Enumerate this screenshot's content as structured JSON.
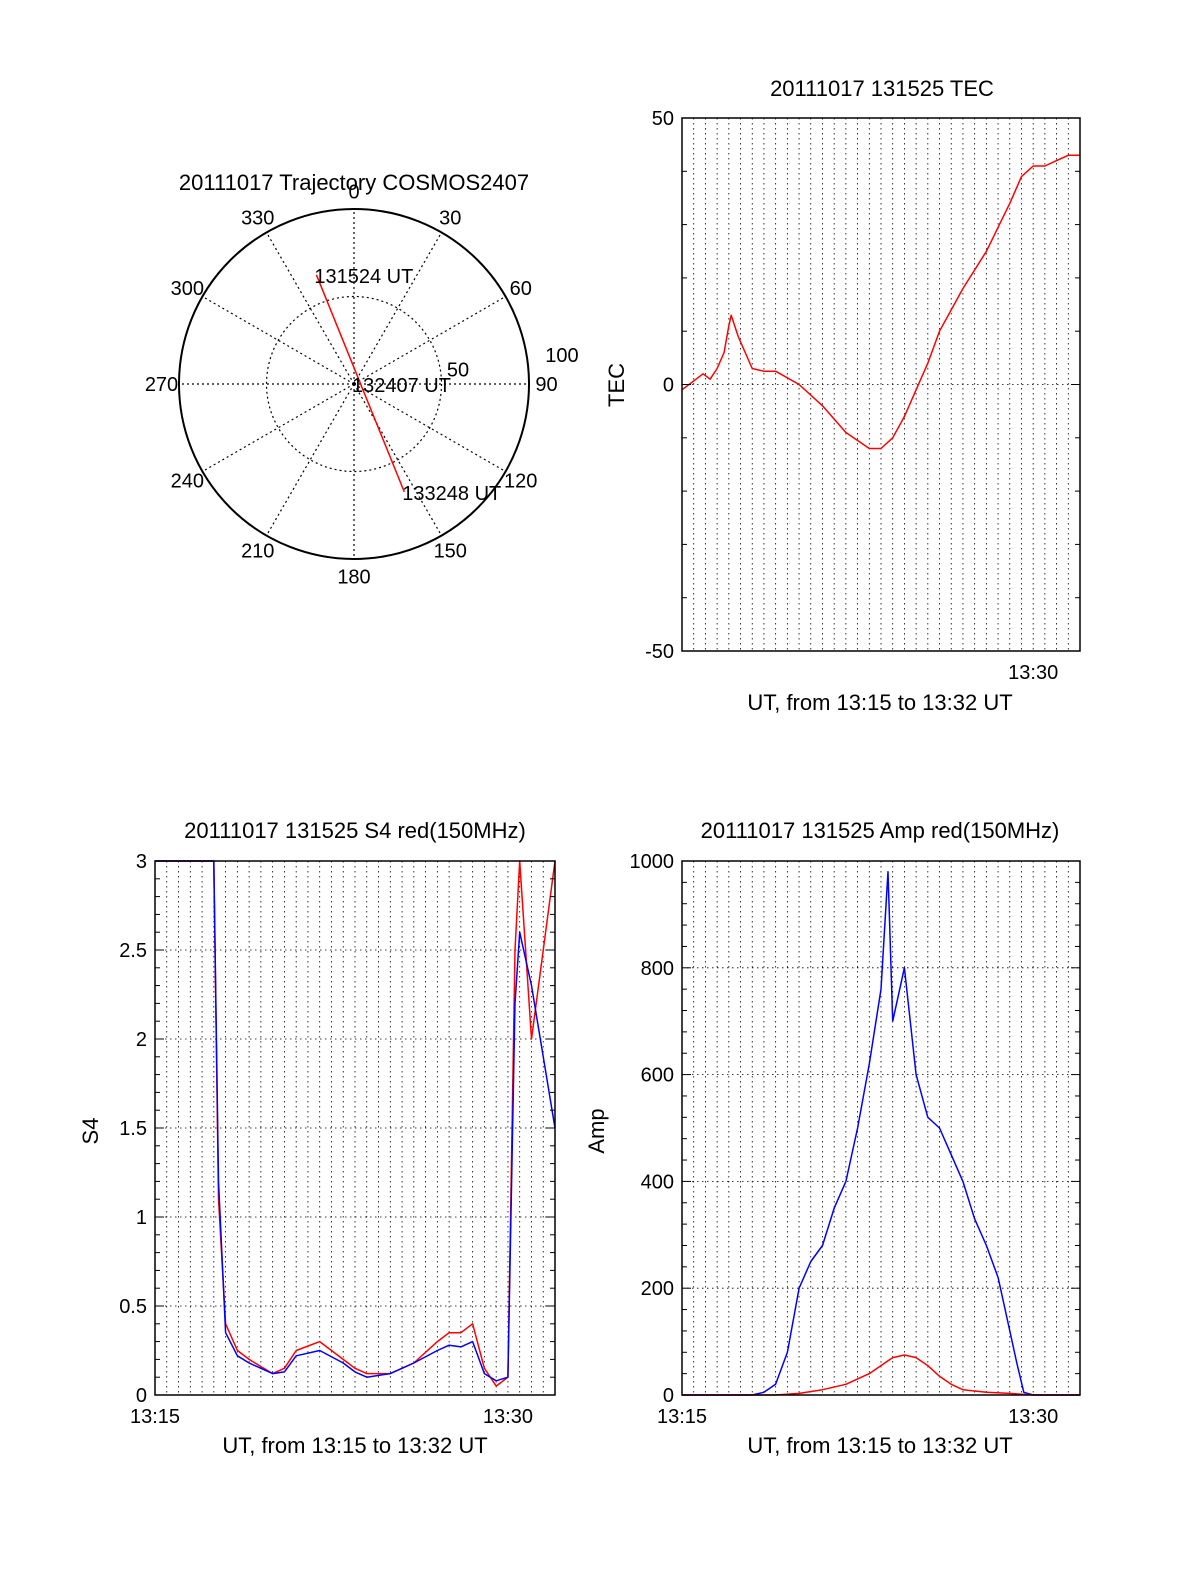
{
  "chart_data": [
    {
      "type": "polar",
      "title": "20111017 Trajectory COSMOS2407",
      "angle_labels": [
        "0",
        "30",
        "60",
        "90",
        "120",
        "150",
        "180",
        "210",
        "240",
        "270",
        "300",
        "330"
      ],
      "angles_deg": [
        0,
        30,
        60,
        90,
        120,
        150,
        180,
        210,
        240,
        270,
        300,
        330
      ],
      "radial_labels": [
        "50",
        "100"
      ],
      "radial_values": [
        50,
        100
      ],
      "rlim": [
        0,
        100
      ],
      "series": [
        {
          "color": "#ff0000",
          "azimuth_deg": [
            341,
            155
          ],
          "radius": [
            66,
            68
          ]
        }
      ],
      "annotations": [
        {
          "text": "131524 UT",
          "azimuth_deg": 341,
          "radius": 66
        },
        {
          "text": "132407 UT",
          "azimuth_deg": 0,
          "radius": 0
        },
        {
          "text": "133248 UT",
          "azimuth_deg": 155,
          "radius": 68
        }
      ]
    },
    {
      "type": "line",
      "title": "20111017 131525 TEC",
      "xlabel": "UT, from 13:15 to 13:32 UT",
      "ylabel": "TEC",
      "xlim": [
        0,
        17
      ],
      "ylim": [
        -50,
        50
      ],
      "yticks": [
        -50,
        0,
        50
      ],
      "xtick_labels": [
        {
          "value": 15,
          "label": "13:30"
        }
      ],
      "grid": true,
      "series": [
        {
          "color": "#ff0000",
          "x": [
            0,
            0.3,
            0.6,
            0.9,
            1.2,
            1.5,
            1.8,
            2.0,
            2.1,
            2.4,
            2.7,
            3.0,
            3.5,
            4.0,
            5.0,
            6.0,
            7.0,
            8.0,
            8.5,
            9.0,
            9.5,
            10.0,
            10.5,
            11.0,
            12.0,
            13.0,
            14.0,
            14.5,
            15.0,
            15.5,
            16.0,
            16.5,
            17.0
          ],
          "y": [
            -1,
            0,
            1,
            2,
            1,
            3,
            6,
            11,
            13,
            9,
            6,
            3,
            2.5,
            2.5,
            0,
            -4,
            -9,
            -12,
            -12,
            -10,
            -6,
            -1,
            4,
            10,
            18,
            25,
            34,
            39,
            41,
            41,
            42,
            43,
            43
          ]
        }
      ]
    },
    {
      "type": "line",
      "title": "20111017 131525 S4 red(150MHz)",
      "xlabel": "UT, from 13:15 to 13:32 UT",
      "ylabel": "S4",
      "xlim": [
        0,
        17
      ],
      "ylim": [
        0,
        3
      ],
      "yticks": [
        0,
        0.5,
        1,
        1.5,
        2,
        2.5,
        3
      ],
      "xtick_labels": [
        {
          "value": 0,
          "label": "13:15"
        },
        {
          "value": 15,
          "label": "13:30"
        }
      ],
      "grid": true,
      "series": [
        {
          "color": "#ff0000",
          "x": [
            0,
            2.5,
            2.7,
            3.0,
            3.5,
            4.0,
            5.0,
            5.5,
            6.0,
            7.0,
            8.0,
            8.5,
            9.0,
            10.0,
            11.0,
            12.0,
            12.5,
            13.0,
            13.5,
            14.0,
            14.5,
            15.0,
            15.3,
            15.5,
            16.0,
            17.0
          ],
          "y": [
            3,
            3,
            1.1,
            0.4,
            0.25,
            0.2,
            0.12,
            0.15,
            0.25,
            0.3,
            0.2,
            0.15,
            0.12,
            0.12,
            0.18,
            0.3,
            0.35,
            0.35,
            0.4,
            0.15,
            0.05,
            0.1,
            2.5,
            3,
            2,
            3
          ]
        },
        {
          "color": "#0000ff",
          "x": [
            0,
            2.5,
            2.7,
            3.0,
            3.5,
            4.0,
            5.0,
            5.5,
            6.0,
            7.0,
            8.0,
            8.5,
            9.0,
            10.0,
            11.0,
            12.0,
            12.5,
            13.0,
            13.5,
            14.0,
            14.5,
            15.0,
            15.3,
            15.5,
            16.0,
            17.0
          ],
          "y": [
            3,
            3,
            1.2,
            0.35,
            0.22,
            0.18,
            0.12,
            0.13,
            0.22,
            0.25,
            0.18,
            0.13,
            0.1,
            0.12,
            0.18,
            0.25,
            0.28,
            0.27,
            0.3,
            0.12,
            0.08,
            0.1,
            2.2,
            2.6,
            2.3,
            1.5
          ]
        }
      ]
    },
    {
      "type": "line",
      "title": "20111017 131525 Amp red(150MHz)",
      "xlabel": "UT, from 13:15 to 13:32 UT",
      "ylabel": "Amp",
      "xlim": [
        0,
        17
      ],
      "ylim": [
        0,
        1000
      ],
      "yticks": [
        0,
        200,
        400,
        600,
        800,
        1000
      ],
      "xtick_labels": [
        {
          "value": 0,
          "label": "13:15"
        },
        {
          "value": 15,
          "label": "13:30"
        }
      ],
      "grid": true,
      "series": [
        {
          "color": "#0000ff",
          "x": [
            0,
            3.0,
            3.5,
            4.0,
            4.5,
            5.0,
            5.5,
            6.0,
            6.5,
            7.0,
            7.5,
            8.0,
            8.5,
            8.8,
            9.0,
            9.5,
            10.0,
            10.5,
            11.0,
            11.5,
            12.0,
            12.5,
            13.0,
            13.5,
            14.0,
            14.3,
            14.6,
            15.0,
            17.0
          ],
          "y": [
            0,
            0,
            5,
            20,
            80,
            200,
            250,
            280,
            350,
            400,
            500,
            620,
            760,
            980,
            700,
            800,
            600,
            520,
            500,
            450,
            400,
            330,
            280,
            220,
            120,
            60,
            5,
            0,
            0
          ]
        },
        {
          "color": "#ff0000",
          "x": [
            0,
            4.0,
            5.0,
            6.0,
            7.0,
            8.0,
            8.5,
            9.0,
            9.5,
            10.0,
            10.5,
            11.0,
            11.5,
            12.0,
            13.0,
            14.0,
            15.0,
            17.0
          ],
          "y": [
            0,
            0,
            3,
            10,
            20,
            40,
            55,
            70,
            75,
            70,
            55,
            35,
            20,
            10,
            5,
            3,
            0,
            0
          ]
        }
      ]
    }
  ]
}
